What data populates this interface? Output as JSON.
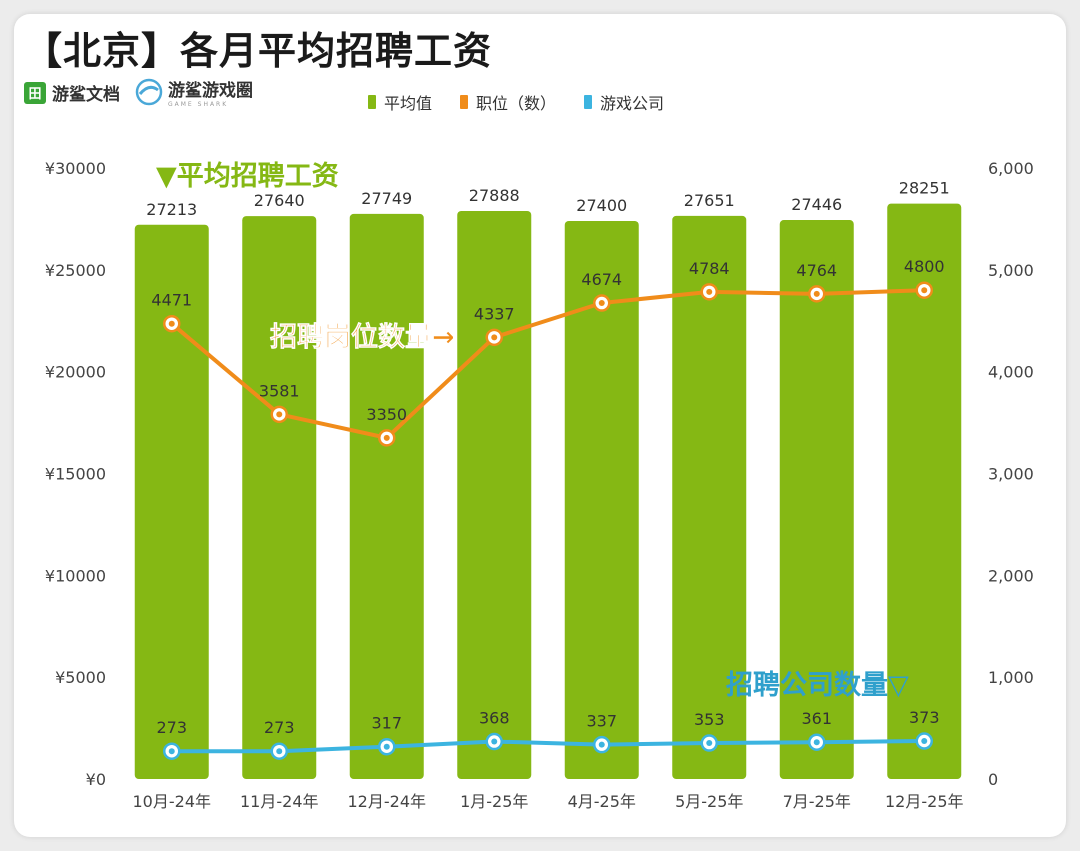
{
  "header": {
    "title": "【北京】各月平均招聘工资",
    "brand_doc_icon": "田",
    "brand_doc": "游鲨文档",
    "brand_game": "游鲨游戏圈",
    "brand_game_sub": "GAME SHARK"
  },
  "colors": {
    "bar": "#85b814",
    "line_jobs": "#f08c1a",
    "line_companies": "#3cb4e0",
    "annot_salary": "#85b814",
    "annot_jobs": "#f08c1a",
    "annot_companies": "#2fa0cc"
  },
  "annotations": {
    "salary": "▼平均招聘工资",
    "jobs": "招聘岗位数量→",
    "companies": "招聘公司数量▽"
  },
  "chart_data": {
    "type": "bar",
    "categories": [
      "10月-24年",
      "11月-24年",
      "12月-24年",
      "1月-25年",
      "4月-25年",
      "5月-25年",
      "7月-25年",
      "12月-25年"
    ],
    "series": [
      {
        "name": "平均值",
        "type": "bar",
        "axis": "left",
        "values": [
          27213,
          27640,
          27749,
          27888,
          27400,
          27651,
          27446,
          28251
        ]
      },
      {
        "name": "职位（数）",
        "type": "line",
        "axis": "right",
        "values": [
          4471,
          3581,
          3350,
          4337,
          4674,
          4784,
          4764,
          4800
        ]
      },
      {
        "name": "游戏公司",
        "type": "line",
        "axis": "right",
        "values": [
          273,
          273,
          317,
          368,
          337,
          353,
          361,
          373
        ]
      }
    ],
    "y_left": {
      "range": [
        0,
        30000
      ],
      "ticks": [
        "¥0",
        "¥5000",
        "¥10000",
        "¥15000",
        "¥20000",
        "¥25000",
        "¥30000"
      ]
    },
    "y_right": {
      "range": [
        0,
        6000
      ],
      "ticks": [
        "0",
        "1,000",
        "2,000",
        "3,000",
        "4,000",
        "5,000",
        "6,000"
      ]
    },
    "legend_position": "top-right"
  }
}
